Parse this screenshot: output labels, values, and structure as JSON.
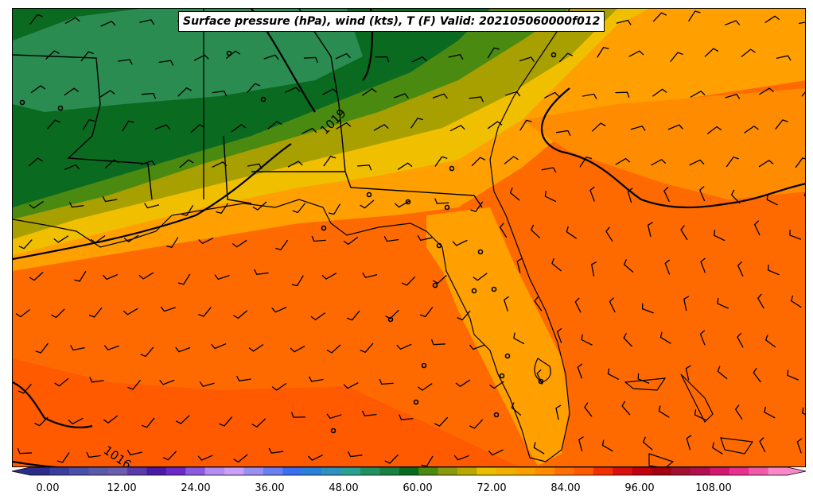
{
  "title": "Surface pressure (hPa), wind (kts), T (F) Valid: 202105060000f012",
  "isobar_labels": [
    "1019",
    "1016"
  ],
  "colorbar": {
    "ticks": [
      "0.00",
      "12.00",
      "24.00",
      "36.00",
      "48.00",
      "60.00",
      "72.00",
      "84.00",
      "96.00",
      "108.00"
    ],
    "colors": [
      "#2b2d8c",
      "#3a3f9e",
      "#4a4fa8",
      "#5a5aaa",
      "#6b5cb0",
      "#5a3aa8",
      "#4a1aa8",
      "#6a2ac8",
      "#8a5ae0",
      "#b48cf0",
      "#c8a0f8",
      "#9a90f0",
      "#6a80f0",
      "#3a70f0",
      "#2a80d8",
      "#3090c0",
      "#2aa090",
      "#209060",
      "#1a8040",
      "#0a6a20",
      "#4a8a10",
      "#8a9a10",
      "#b8a800",
      "#e8c000",
      "#f0b000",
      "#f8a000",
      "#ff8c00",
      "#ff7000",
      "#ff5a00",
      "#f03000",
      "#d81010",
      "#c00010",
      "#a00010",
      "#a01030",
      "#b01050",
      "#d01870",
      "#e83090",
      "#f05aa8",
      "#f888c8"
    ]
  },
  "map": {
    "colors": {
      "ocean_warm": "#ff6a00",
      "land_warm": "#ffa000",
      "yellow_band": "#f0c000",
      "olive_band": "#a8a000",
      "green_mid": "#4a8a10",
      "green_dark": "#0a6a20",
      "green_light": "#2a8c50",
      "lines": "#000000"
    }
  }
}
